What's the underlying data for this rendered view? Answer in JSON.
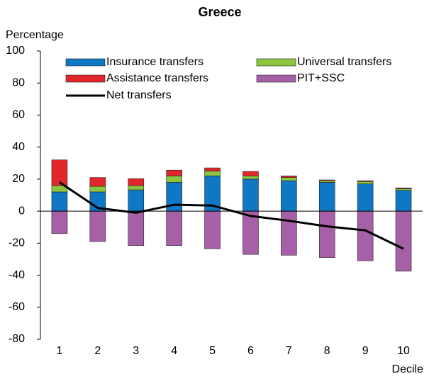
{
  "chart_data": {
    "type": "bar",
    "title": "Greece",
    "y_label": "Percentage",
    "x_label": "Decile",
    "categories": [
      "1",
      "2",
      "3",
      "4",
      "5",
      "6",
      "7",
      "8",
      "9",
      "10"
    ],
    "stacked": true,
    "series": [
      {
        "name": "Insurance transfers",
        "type": "bar",
        "color": "#0f77c3",
        "values": [
          12,
          12,
          13.3,
          18,
          22,
          20,
          19,
          18,
          17,
          13
        ]
      },
      {
        "name": "Universal transfers",
        "type": "bar",
        "color": "#8cc63f",
        "values": [
          4,
          3.5,
          2.7,
          4,
          3,
          2,
          2,
          1,
          1.5,
          1
        ]
      },
      {
        "name": "Assistance transfers",
        "type": "bar",
        "color": "#e3262b",
        "values": [
          16,
          5.5,
          4.3,
          3.6,
          2,
          2.8,
          1,
          0.5,
          0.5,
          0.5
        ]
      },
      {
        "name": "PIT+SSC",
        "type": "bar",
        "color": "#a660a8",
        "values": [
          -14,
          -19,
          -21.5,
          -21.5,
          -23.5,
          -27,
          -27.5,
          -29,
          -31,
          -37.5
        ]
      },
      {
        "name": "Net transfers",
        "type": "line",
        "color": "#000000",
        "values": [
          18,
          2,
          -1,
          4,
          3.5,
          -3,
          -6,
          -9.5,
          -12,
          -23.5
        ]
      }
    ],
    "ylim": [
      -80,
      100
    ],
    "yticks": [
      -80,
      -60,
      -40,
      -20,
      0,
      20,
      40,
      60,
      80,
      100
    ],
    "grid": false
  }
}
